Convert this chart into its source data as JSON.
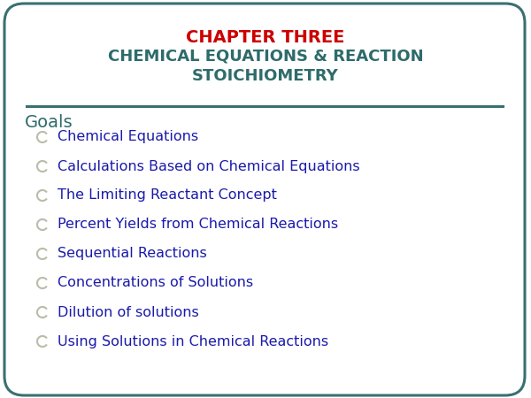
{
  "title_line1": "CHAPTER THREE",
  "title_line2": "CHEMICAL EQUATIONS & REACTION\nSTOICHIOMETRY",
  "title_color": "#cc0000",
  "subtitle_color": "#2e6b6b",
  "goals_label": "Goals",
  "goals_color": "#2e6b6b",
  "bullet_items": [
    "Chemical Equations",
    "Calculations Based on Chemical Equations",
    "The Limiting Reactant Concept",
    "Percent Yields from Chemical Reactions",
    "Sequential Reactions",
    "Concentrations of Solutions",
    "Dilution of solutions",
    "Using Solutions in Chemical Reactions"
  ],
  "bullet_color": "#1a1aaa",
  "bullet_marker_color": "#bbbbaa",
  "border_color": "#3a7070",
  "background_color": "#ffffff",
  "separator_color": "#3a7070",
  "fig_width": 6.0,
  "fig_height": 4.5,
  "fig_dpi": 100
}
